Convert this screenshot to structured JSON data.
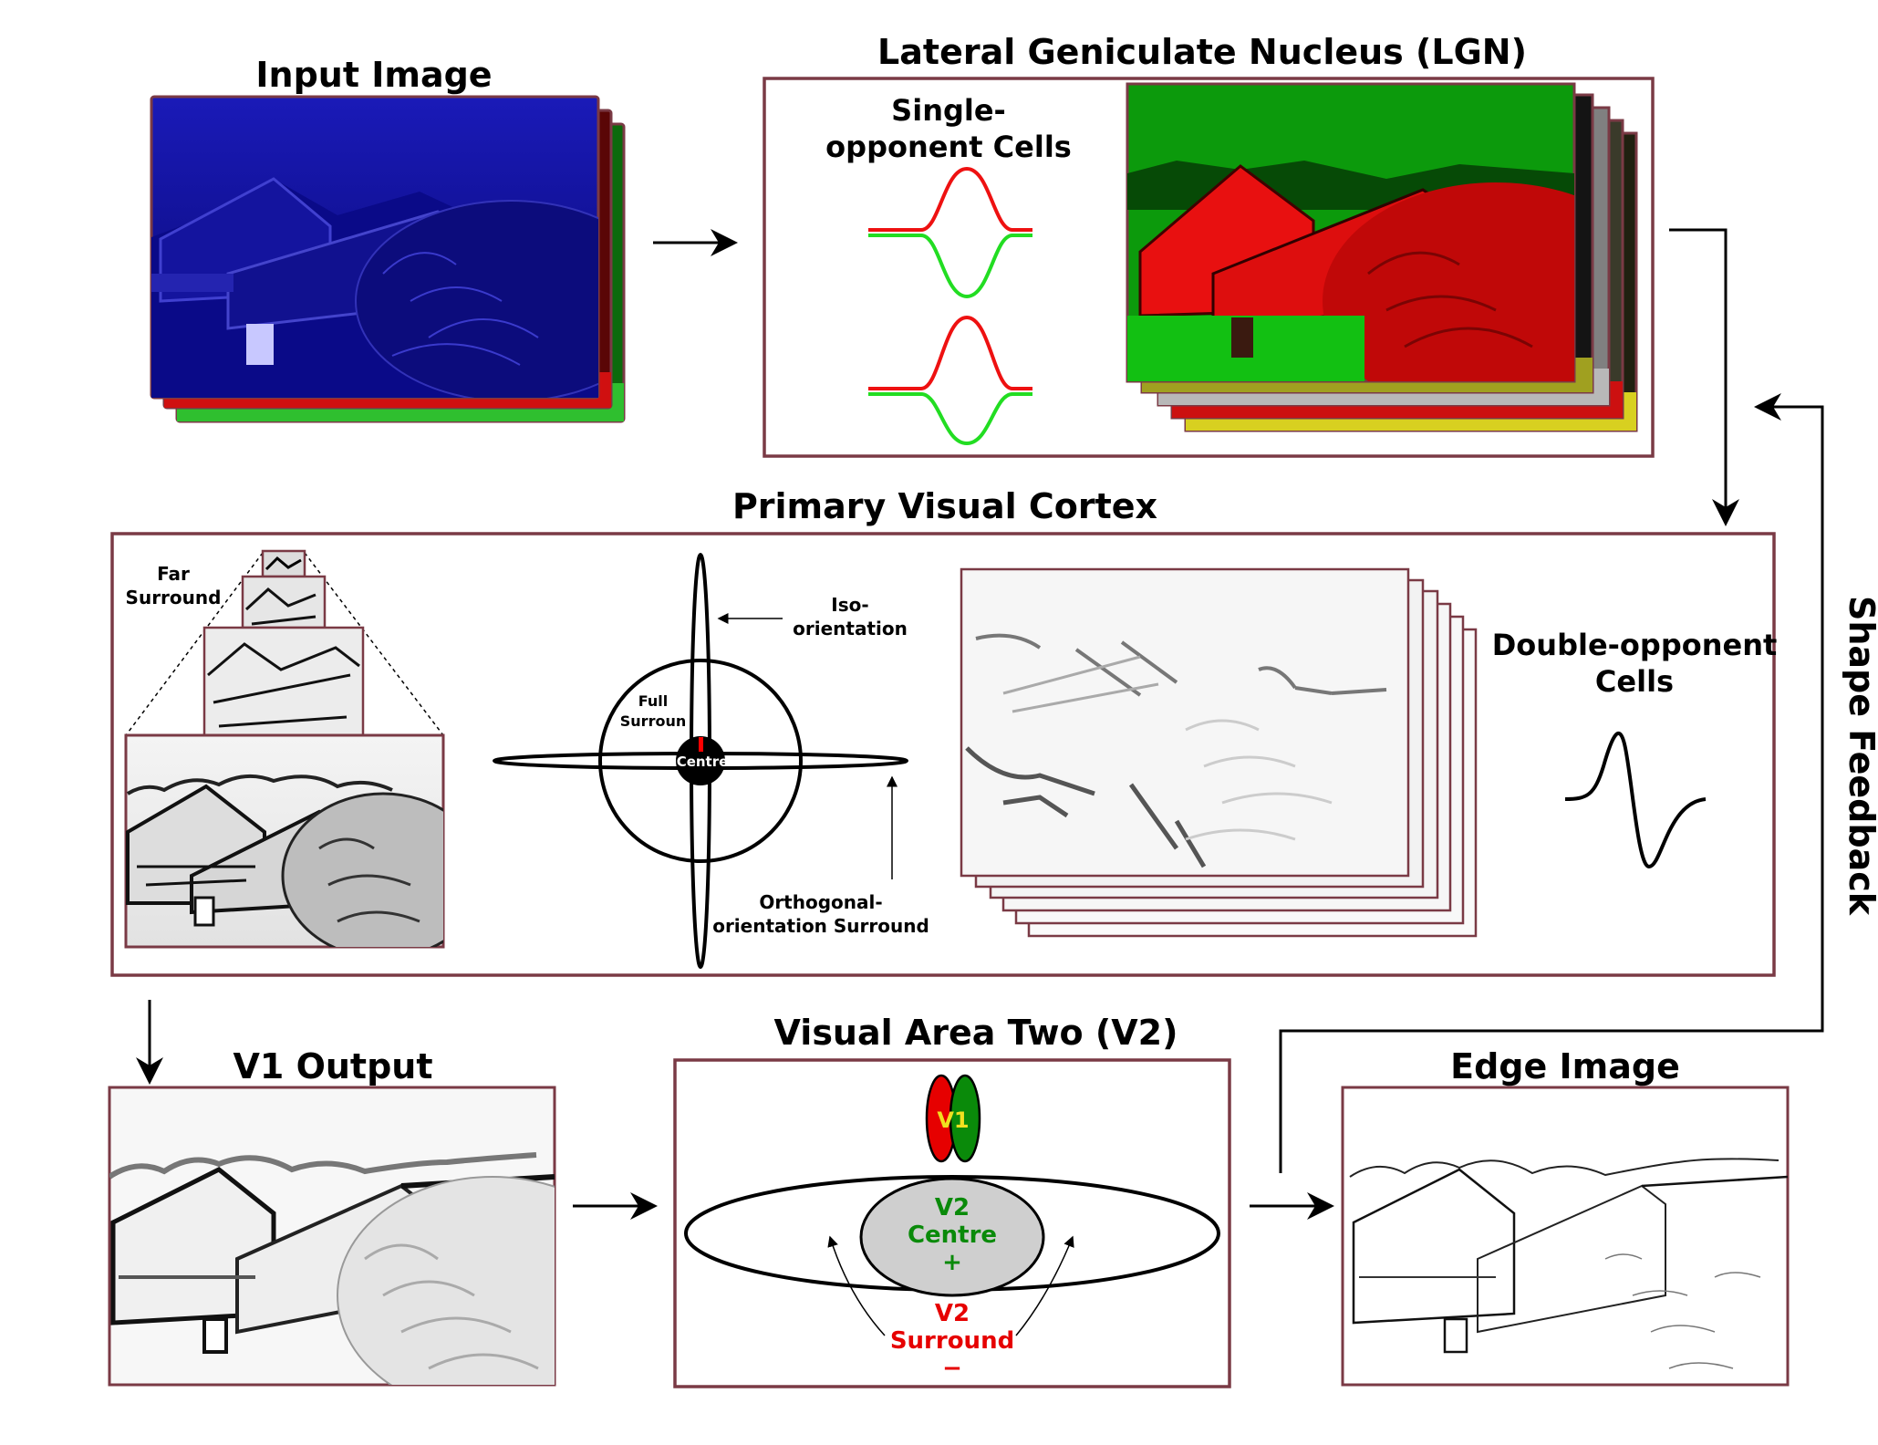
{
  "colors": {
    "frame": "#7a3a45",
    "red": "#e60000",
    "green": "#0a8a0a",
    "bright_green": "#22dd22",
    "blue": "#10109a",
    "yellow": "#d8d020",
    "gray_fill": "#cfcfcf"
  },
  "titles": {
    "input_image": "Input Image",
    "lgn": "Lateral Geniculate Nucleus (LGN)",
    "v1": "Primary Visual Cortex",
    "v1_output": "V1 Output",
    "v2": "Visual Area Two (V2)",
    "edge_image": "Edge Image"
  },
  "lgn": {
    "single_opponent_line1": "Single-",
    "single_opponent_line2": "opponent Cells"
  },
  "v1": {
    "far_surround_line1": "Far",
    "far_surround_line2": "Surround",
    "iso_line1": "Iso-",
    "iso_line2": "orientation",
    "full_surround_line1": "Full",
    "full_surround_line2": "Surroun",
    "centre": "Centre",
    "orth_line1": "Orthogonal-",
    "orth_line2": "orientation Surround",
    "double_opponent_line1": "Double-opponent",
    "double_opponent_line2": "Cells"
  },
  "v2": {
    "v1_label": "V1",
    "centre_line1": "V2",
    "centre_line2": "Centre",
    "centre_line3": "+",
    "surround_line1": "V2",
    "surround_line2": "Surround",
    "surround_line3": "−"
  },
  "feedback": {
    "label": "Shape Feedback"
  },
  "icons": {
    "scene": "barn-landscape-photo-icon",
    "curve": "opponent-response-curve-icon"
  }
}
